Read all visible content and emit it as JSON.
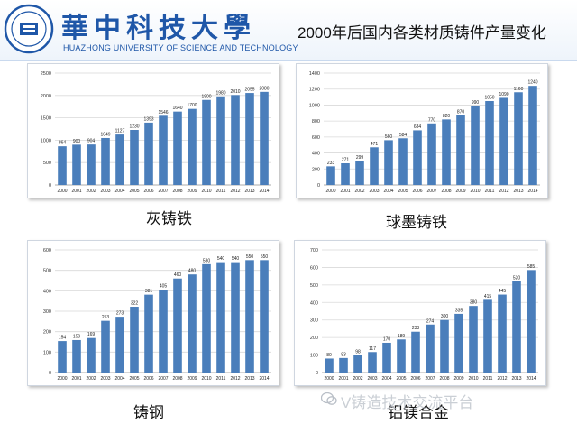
{
  "header": {
    "logo_name": "HUST-emblem",
    "university_cn": "華中科技大學",
    "university_en": "HUAZHONG UNIVERSITY OF SCIENCE AND TECHNOLOGY",
    "slide_title": "2000年后国内各类材质铸件产量变化"
  },
  "captions": [
    "灰铸铁",
    "球墨铸铁",
    "铸钢",
    "铝镁合金"
  ],
  "watermark": {
    "icon": "wechat-icon",
    "text": "V铸造技术交流平台"
  },
  "colors": {
    "bar": "#4a7ebb",
    "grid": "#d9d9d9",
    "accent": "#1f57a8"
  },
  "chart_data": [
    {
      "type": "bar",
      "categories": [
        "2000",
        "2001",
        "2002",
        "2003",
        "2004",
        "2005",
        "2006",
        "2007",
        "2008",
        "2009",
        "2010",
        "2011",
        "2012",
        "2013",
        "2014"
      ],
      "values": [
        864,
        900,
        904,
        1049,
        1127,
        1230,
        1393,
        1546,
        1640,
        1700,
        1900,
        1980,
        2010,
        2055,
        2080
      ],
      "ylim": [
        0,
        2500
      ],
      "yticks": [
        0,
        500,
        1000,
        1500,
        2000,
        2500
      ],
      "grid": true
    },
    {
      "type": "bar",
      "categories": [
        "2000",
        "2001",
        "2002",
        "2003",
        "2004",
        "2005",
        "2006",
        "2007",
        "2008",
        "2009",
        "2010",
        "2011",
        "2012",
        "2013",
        "2014"
      ],
      "values": [
        233,
        271,
        299,
        471,
        560,
        584,
        684,
        770,
        820,
        870,
        990,
        1050,
        1090,
        1160,
        1240
      ],
      "ylim": [
        0,
        1400
      ],
      "yticks": [
        0,
        200,
        400,
        600,
        800,
        1000,
        1200,
        1400
      ],
      "grid": true
    },
    {
      "type": "bar",
      "categories": [
        "2000",
        "2001",
        "2002",
        "2003",
        "2004",
        "2005",
        "2006",
        "2007",
        "2008",
        "2009",
        "2010",
        "2011",
        "2012",
        "2013",
        "2014"
      ],
      "values": [
        154,
        159,
        169,
        253,
        273,
        322,
        381,
        405,
        460,
        480,
        530,
        540,
        540,
        550,
        550
      ],
      "ylim": [
        0,
        600
      ],
      "yticks": [
        0,
        100,
        200,
        300,
        400,
        500,
        600
      ],
      "grid": true
    },
    {
      "type": "bar",
      "categories": [
        "2000",
        "2001",
        "2002",
        "2003",
        "2004",
        "2005",
        "2006",
        "2007",
        "2008",
        "2009",
        "2010",
        "2011",
        "2012",
        "2013",
        "2014"
      ],
      "values": [
        80,
        83,
        98,
        117,
        170,
        189,
        233,
        274,
        300,
        335,
        380,
        415,
        445,
        520,
        585
      ],
      "ylim": [
        0,
        700
      ],
      "yticks": [
        0,
        100,
        200,
        300,
        400,
        500,
        600,
        700
      ],
      "grid": true
    }
  ]
}
